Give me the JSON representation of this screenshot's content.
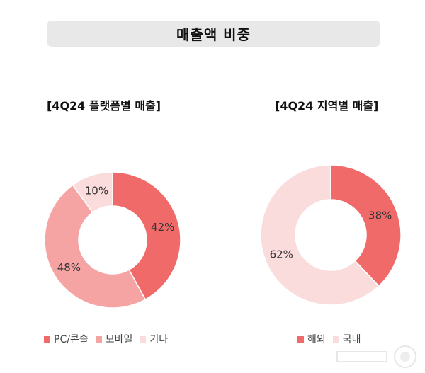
{
  "header": {
    "title": "매출액 비중"
  },
  "chart_data": [
    {
      "type": "pie",
      "title": "[4Q24 플랫폼별 매출]",
      "categories": [
        "PC/콘솔",
        "모바일",
        "기타"
      ],
      "values": [
        42,
        48,
        10
      ],
      "value_labels": [
        "42%",
        "48%",
        "10%"
      ],
      "colors": [
        "#f06a6a",
        "#f5a3a3",
        "#fbdcdc"
      ],
      "legend_position": "bottom"
    },
    {
      "type": "pie",
      "title": "[4Q24 지역별 매출]",
      "categories": [
        "해외",
        "국내"
      ],
      "values": [
        38,
        62
      ],
      "value_labels": [
        "38%",
        "62%"
      ],
      "colors": [
        "#f06a6a",
        "#fbdcdc"
      ],
      "legend_position": "bottom"
    }
  ]
}
